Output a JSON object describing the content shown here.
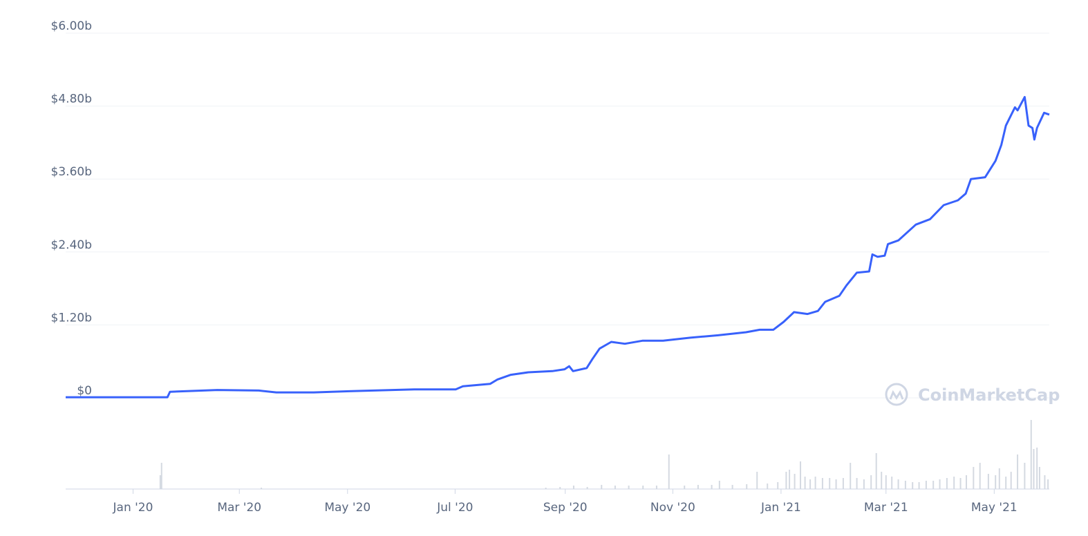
{
  "chart_data": {
    "type": "line",
    "color": "#3861fb",
    "grid": true,
    "watermark": "CoinMarketCap",
    "xlim": [
      2019.896,
      2021.414
    ],
    "ylim": [
      0,
      6
    ],
    "xticks": [
      {
        "value": 2020,
        "label": "Jan '20"
      },
      {
        "value": 2020.164,
        "label": "Mar '20"
      },
      {
        "value": 2020.331,
        "label": "May '20"
      },
      {
        "value": 2020.497,
        "label": "Jul '20"
      },
      {
        "value": 2020.667,
        "label": "Sep '20"
      },
      {
        "value": 2020.833,
        "label": "Nov '20"
      },
      {
        "value": 2021,
        "label": "Jan '21"
      },
      {
        "value": 2021.162,
        "label": "Mar '21"
      },
      {
        "value": 2021.329,
        "label": "May '21"
      }
    ],
    "yticks": [
      {
        "value": 0,
        "label": "$0"
      },
      {
        "value": 1.2,
        "label": "$1.20b"
      },
      {
        "value": 2.4,
        "label": "$2.40b"
      },
      {
        "value": 3.6,
        "label": "$3.60b"
      },
      {
        "value": 4.8,
        "label": "$4.80b"
      },
      {
        "value": 6,
        "label": "$6.00b"
      }
    ],
    "x": [
      2019.896,
      2020.053,
      2020.057,
      2020.13,
      2020.194,
      2020.221,
      2020.279,
      2020.338,
      2020.434,
      2020.498,
      2020.509,
      2020.551,
      2020.562,
      2020.583,
      2020.61,
      2020.647,
      2020.666,
      2020.673,
      2020.679,
      2020.7,
      2020.709,
      2020.72,
      2020.738,
      2020.759,
      2020.786,
      2020.818,
      2020.86,
      2020.882,
      2020.903,
      2020.946,
      2020.967,
      2020.988,
      2021.004,
      2021.02,
      2021.041,
      2021.057,
      2021.068,
      2021.09,
      2021.101,
      2021.117,
      2021.136,
      2021.141,
      2021.149,
      2021.16,
      2021.165,
      2021.181,
      2021.208,
      2021.23,
      2021.251,
      2021.273,
      2021.285,
      2021.293,
      2021.315,
      2021.331,
      2021.34,
      2021.347,
      2021.361,
      2021.365,
      2021.376,
      2021.382,
      2021.388,
      2021.391,
      2021.395,
      2021.406,
      2021.414
    ],
    "values": [
      0.01,
      0.01,
      0.1,
      0.13,
      0.12,
      0.09,
      0.09,
      0.11,
      0.14,
      0.14,
      0.19,
      0.23,
      0.3,
      0.38,
      0.42,
      0.44,
      0.47,
      0.52,
      0.44,
      0.49,
      0.64,
      0.81,
      0.92,
      0.89,
      0.94,
      0.94,
      0.99,
      1.01,
      1.03,
      1.08,
      1.12,
      1.12,
      1.25,
      1.41,
      1.38,
      1.43,
      1.58,
      1.68,
      1.85,
      2.06,
      2.08,
      2.36,
      2.32,
      2.34,
      2.53,
      2.59,
      2.85,
      2.94,
      3.17,
      3.25,
      3.36,
      3.6,
      3.63,
      3.9,
      4.16,
      4.48,
      4.78,
      4.73,
      4.95,
      4.48,
      4.44,
      4.25,
      4.44,
      4.69,
      4.66
    ],
    "volume": {
      "color": "#d4d9e1",
      "y2lim": [
        0,
        100
      ],
      "x": [
        2020.042,
        2020.044,
        2020.198,
        2020.637,
        2020.659,
        2020.68,
        2020.701,
        2020.723,
        2020.744,
        2020.765,
        2020.787,
        2020.808,
        2020.827,
        2020.851,
        2020.872,
        2020.893,
        2020.905,
        2020.925,
        2020.947,
        2020.963,
        2020.979,
        2020.995,
        2021.008,
        2021.013,
        2021.021,
        2021.03,
        2021.037,
        2021.045,
        2021.053,
        2021.064,
        2021.075,
        2021.085,
        2021.096,
        2021.107,
        2021.117,
        2021.128,
        2021.139,
        2021.147,
        2021.155,
        2021.162,
        2021.171,
        2021.181,
        2021.192,
        2021.203,
        2021.213,
        2021.224,
        2021.235,
        2021.245,
        2021.256,
        2021.267,
        2021.277,
        2021.286,
        2021.297,
        2021.307,
        2021.32,
        2021.331,
        2021.337,
        2021.347,
        2021.355,
        2021.365,
        2021.376,
        2021.386,
        2021.39,
        2021.395,
        2021.399,
        2021.407,
        2021.412
      ],
      "values": [
        20,
        38,
        2,
        2,
        3,
        5,
        3,
        6,
        5,
        5,
        5,
        5,
        50,
        5,
        6,
        6,
        12,
        6,
        7,
        25,
        8,
        10,
        25,
        28,
        22,
        40,
        18,
        14,
        18,
        16,
        16,
        14,
        16,
        38,
        16,
        14,
        20,
        52,
        25,
        20,
        18,
        14,
        12,
        10,
        10,
        12,
        12,
        14,
        16,
        18,
        16,
        20,
        32,
        38,
        22,
        20,
        30,
        18,
        25,
        50,
        38,
        100,
        58,
        60,
        32,
        20,
        14
      ]
    }
  }
}
